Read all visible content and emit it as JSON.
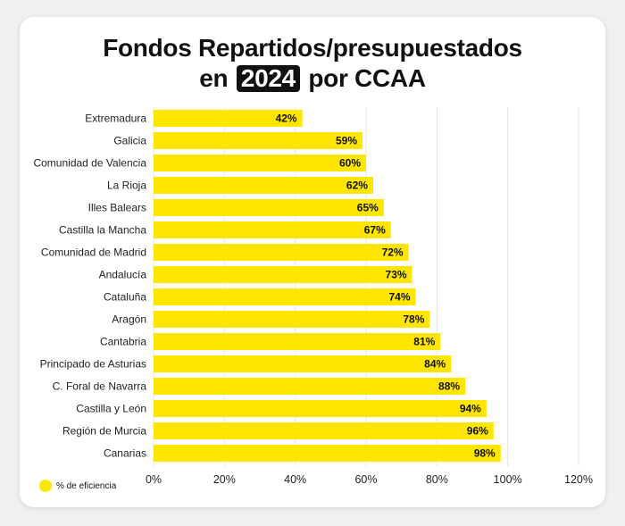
{
  "title": {
    "line1": "Fondos Repartidos/presupuestados",
    "line2_prefix": "en",
    "year": "2024",
    "line2_suffix": "por CCAA"
  },
  "colors": {
    "bar": "#FFE600",
    "grid": "#e6e6e6"
  },
  "legend": {
    "label": "% de eficiencia"
  },
  "chart_data": {
    "type": "bar",
    "orientation": "horizontal",
    "title": "Fondos Repartidos/presupuestados en 2024 por CCAA",
    "categories": [
      "Extremadura",
      "Galicia",
      "Comunidad de Valencia",
      "La Rioja",
      "Illes Balears",
      "Castilla la Mancha",
      "Comunidad de Madrid",
      "Andalucía",
      "Cataluña",
      "Aragón",
      "Cantabria",
      "Principado de Asturias",
      "C. Foral de Navarra",
      "Castilla y León",
      "Región de Murcia",
      "Canarias"
    ],
    "series": [
      {
        "name": "% de eficiencia",
        "values": [
          42,
          59,
          60,
          62,
          65,
          67,
          72,
          73,
          74,
          78,
          81,
          84,
          88,
          94,
          96,
          98
        ]
      }
    ],
    "value_labels": [
      "42%",
      "59%",
      "60%",
      "62%",
      "65%",
      "67%",
      "72%",
      "73%",
      "74%",
      "78%",
      "81%",
      "84%",
      "88%",
      "94%",
      "96%",
      "98%"
    ],
    "xlim": [
      0,
      120
    ],
    "xticks": [
      0,
      20,
      40,
      60,
      80,
      100,
      120
    ],
    "xtick_labels": [
      "0%",
      "20%",
      "40%",
      "60%",
      "80%",
      "100%",
      "120%"
    ],
    "grid": true,
    "legend_position": "bottom-left"
  }
}
